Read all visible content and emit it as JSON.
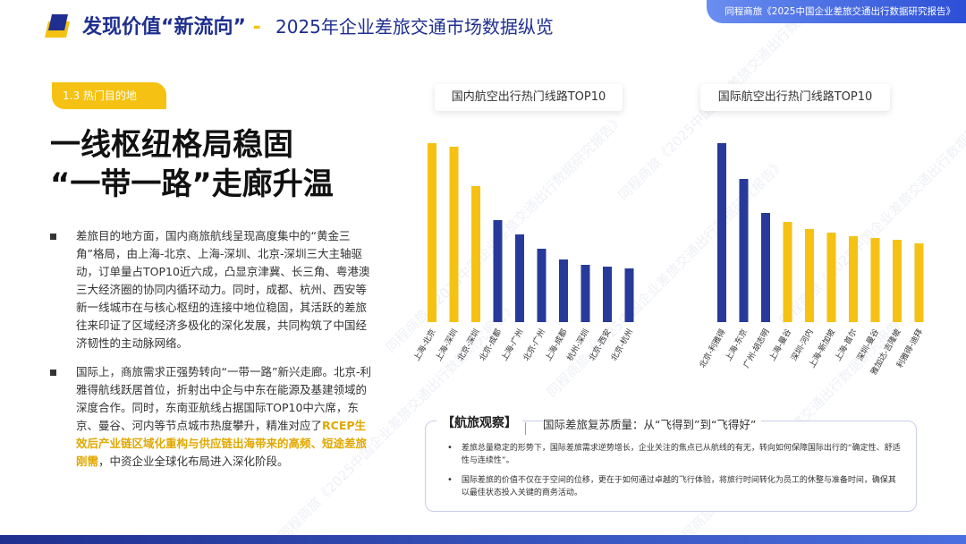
{
  "header": {
    "title_main": "发现价值“新流向”",
    "title_sep": "-",
    "title_sub": "2025年企业差旅交通市场数据纵览",
    "report_tag": "同程商旅《2025中国企业差旅交通出行数据研究报告》"
  },
  "section": {
    "tag": "1.3 热门目的地"
  },
  "headline": {
    "line1": "一线枢纽格局稳固",
    "line2": "“一带一路”走廊升温"
  },
  "bullets": [
    {
      "text": "差旅目的地方面，国内商旅航线呈现高度集中的“黄金三角”格局，由上海-北京、上海-深圳、北京-深圳三大主轴驱动，订单量占TOP10近六成，凸显京津冀、长三角、粤港澳三大经济圈的协同内循环动力。同时，成都、杭州、西安等新一线城市在与核心枢纽的连接中地位稳固，其活跃的差旅往来印证了区域经济多极化的深化发展，共同构筑了中国经济韧性的主动脉网络。"
    },
    {
      "text_a": "国际上，商旅需求正强势转向“一带一路”新兴走廊。北京-利雅得航线跃居首位，折射出中企与中东在能源及基建领域的深度合作。同时，东南亚航线占据国际TOP10中六席，东京、曼谷、河内等节点城市热度攀升，精准对应了",
      "text_hl": "RCEP生效后产业链区域化重构与供应链出海带来的高频、短途差旅刚需",
      "text_b": "，中资企业全球化布局进入深化阶段。"
    }
  ],
  "charts": {
    "domestic_title": "国内航空出行热门线路TOP10",
    "international_title": "国际航空出行热门线路TOP10"
  },
  "chart_data": [
    {
      "type": "bar",
      "title": "国内航空出行热门线路TOP10",
      "categories": [
        "上海-北京",
        "上海-深圳",
        "北京-深圳",
        "北京-成都",
        "上海-广州",
        "北京-广州",
        "上海-成都",
        "杭州-深圳",
        "北京-西安",
        "北京-杭州"
      ],
      "values": [
        100,
        98,
        76,
        57,
        49,
        41,
        35,
        32,
        31,
        30
      ],
      "colors": [
        "#f5c213",
        "#f5c213",
        "#f5c213",
        "#273a9a",
        "#273a9a",
        "#273a9a",
        "#273a9a",
        "#273a9a",
        "#273a9a",
        "#273a9a"
      ],
      "ylim": [
        0,
        100
      ]
    },
    {
      "type": "bar",
      "title": "国际航空出行热门线路TOP10",
      "categories": [
        "北京-利雅得",
        "上海-东京",
        "广州-胡志明",
        "上海-曼谷",
        "深圳-河内",
        "上海-新加坡",
        "上海-首尔",
        "深圳-曼谷",
        "雅加达-吉隆坡",
        "利雅得-迪拜"
      ],
      "values": [
        100,
        80,
        61,
        56,
        52,
        50,
        48,
        47,
        46,
        44
      ],
      "colors": [
        "#273a9a",
        "#273a9a",
        "#273a9a",
        "#f5c213",
        "#f5c213",
        "#f5c213",
        "#f5c213",
        "#f5c213",
        "#f5c213",
        "#f5c213"
      ],
      "ylim": [
        0,
        100
      ]
    }
  ],
  "observation": {
    "label": "【航旅观察】",
    "subtitle": "国际差旅复苏质量：从“飞得到”到“飞得好”",
    "items": [
      "差旅总量稳定的形势下，国际差旅需求逆势增长，企业关注的焦点已从航线的有无，转向如何保障国际出行的“确定性、舒适性与连续性”。",
      "国际差旅的价值不仅在于空间的位移，更在于如何通过卓越的飞行体验，将旅行时间转化为员工的休整与准备时间，确保其以最佳状态投入关键的商务活动。"
    ]
  }
}
